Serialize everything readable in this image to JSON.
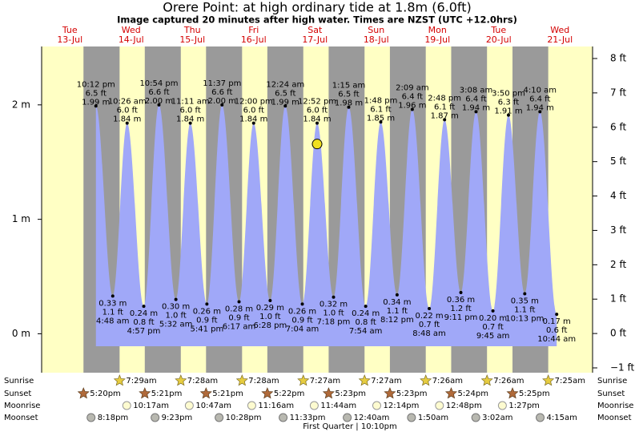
{
  "chart_data": {
    "type": "tide",
    "title": "Orere Point: at high  ordinary tide at 1.8m (6.0ft)",
    "subtitle": "Image captured 20 minutes after high water. Times are NZST (UTC +12.0hrs)",
    "fill_color": "#a0a8f8",
    "day_color": "#ffffc4",
    "night_color": "#9a9a9a",
    "ylim": [
      -0.34,
      2.51
    ],
    "yticks": [
      {
        "value": 0,
        "label": "0 m"
      },
      {
        "value": 1,
        "label": "1 m"
      },
      {
        "value": 2,
        "label": "2 m"
      }
    ],
    "y2lim": [
      -1.14,
      8.35
    ],
    "y2ticks": [
      {
        "value": -1,
        "label": "−1 ft"
      },
      {
        "value": 0,
        "label": "0 ft"
      },
      {
        "value": 1,
        "label": "1 ft"
      },
      {
        "value": 2,
        "label": "2 ft"
      },
      {
        "value": 3,
        "label": "3 ft"
      },
      {
        "value": 4,
        "label": "4 ft"
      },
      {
        "value": 5,
        "label": "5 ft"
      },
      {
        "value": 6,
        "label": "6 ft"
      },
      {
        "value": 7,
        "label": "7 ft"
      },
      {
        "value": 8,
        "label": "8 ft"
      }
    ],
    "days": [
      {
        "weekday": "Tue",
        "date": "13-Jul",
        "sunset": "5:20pm",
        "moonset": "8:18pm"
      },
      {
        "weekday": "Wed",
        "date": "14-Jul",
        "sunrise": "7:29am",
        "sunset": "5:21pm",
        "moonrise": "10:17am",
        "moonset": "9:23pm"
      },
      {
        "weekday": "Thu",
        "date": "15-Jul",
        "sunrise": "7:28am",
        "sunset": "5:21pm",
        "moonrise": "10:47am",
        "moonset": "10:28pm"
      },
      {
        "weekday": "Fri",
        "date": "16-Jul",
        "sunrise": "7:28am",
        "sunset": "5:22pm",
        "moonrise": "11:16am",
        "moonset": "11:33pm"
      },
      {
        "weekday": "Sat",
        "date": "17-Jul",
        "sunrise": "7:27am",
        "sunset": "5:23pm",
        "moonrise": "11:44am"
      },
      {
        "weekday": "Sun",
        "date": "18-Jul",
        "sunrise": "7:27am",
        "sunset": "5:23pm",
        "moonrise": "12:14pm",
        "moonset": "12:40am"
      },
      {
        "weekday": "Mon",
        "date": "19-Jul",
        "sunrise": "7:26am",
        "sunset": "5:24pm",
        "moonrise": "12:48pm",
        "moonset": "1:50am"
      },
      {
        "weekday": "Tue",
        "date": "20-Jul",
        "sunrise": "7:26am",
        "sunset": "5:25pm",
        "moonrise": "1:27pm",
        "moonset": "3:02am"
      },
      {
        "weekday": "Wed",
        "date": "21-Jul",
        "sunrise": "7:25am",
        "moonset": "4:15am"
      }
    ],
    "event_labels": [
      "Sunrise",
      "Sunset",
      "Moonrise",
      "Moonset"
    ],
    "moon_phase": "First Quarter | 10:10pm",
    "extremes": {
      "times": [
        "10:12 pm",
        "4:48 am",
        "10:26 am",
        "4:57 pm",
        "10:54 pm",
        "5:32 am",
        "11:11 am",
        "5:41 pm",
        "11:37 pm",
        "6:17 am",
        "12:00 pm",
        "6:28 pm",
        "12:24 am",
        "7:04 am",
        "12:52 pm",
        "7:18 pm",
        "1:15 am",
        "7:54 am",
        "1:48 pm",
        "8:12 pm",
        "2:09 am",
        "8:48 am",
        "2:48 pm",
        "9:11 pm",
        "3:08 am",
        "9:45 am",
        "3:50 pm",
        "10:13 pm",
        "4:10 am",
        "10:44 am"
      ],
      "values": [
        1.99,
        0.33,
        1.84,
        0.24,
        2.0,
        0.3,
        1.84,
        0.26,
        2.0,
        0.28,
        1.84,
        0.29,
        1.99,
        0.26,
        1.84,
        0.32,
        1.98,
        0.24,
        1.85,
        0.34,
        1.96,
        0.22,
        1.87,
        0.36,
        1.94,
        0.2,
        1.91,
        0.35,
        1.94,
        0.17
      ],
      "value_labels": [
        "1.99 m",
        "0.33 m",
        "1.84 m",
        "0.24 m",
        "2.00 m",
        "0.30 m",
        "1.84 m",
        "0.26 m",
        "2.00 m",
        "0.28 m",
        "1.84 m",
        "0.29 m",
        "1.99 m",
        "0.26 m",
        "1.84 m",
        "0.32 m",
        "1.98 m",
        "0.24 m",
        "1.85 m",
        "0.34 m",
        "1.96 m",
        "0.22 m",
        "1.87 m",
        "0.36 m",
        "1.94 m",
        "0.20 m",
        "1.91 m",
        "0.35 m",
        "1.94 m",
        "0.17 m"
      ],
      "feet": [
        6.5,
        1.1,
        6.0,
        0.8,
        6.6,
        1.0,
        6.0,
        0.9,
        6.6,
        0.9,
        6.0,
        1.0,
        6.5,
        0.9,
        6.0,
        1.0,
        6.5,
        0.8,
        6.1,
        1.1,
        6.4,
        0.7,
        6.1,
        1.2,
        6.4,
        0.7,
        6.3,
        1.1,
        6.4,
        0.6
      ],
      "feet_labels": [
        "6.5 ft",
        "1.1 ft",
        "6.0 ft",
        "0.8 ft",
        "6.6 ft",
        "1.0 ft",
        "6.0 ft",
        "0.9 ft",
        "6.6 ft",
        "0.9 ft",
        "6.0 ft",
        "1.0 ft",
        "6.5 ft",
        "0.9 ft",
        "6.0 ft",
        "1.0 ft",
        "6.5 ft",
        "0.8 ft",
        "6.1 ft",
        "1.1 ft",
        "6.4 ft",
        "0.7 ft",
        "6.1 ft",
        "1.2 ft",
        "6.4 ft",
        "0.7 ft",
        "6.3 ft",
        "1.1 ft",
        "6.4 ft",
        "0.6 ft"
      ]
    }
  }
}
